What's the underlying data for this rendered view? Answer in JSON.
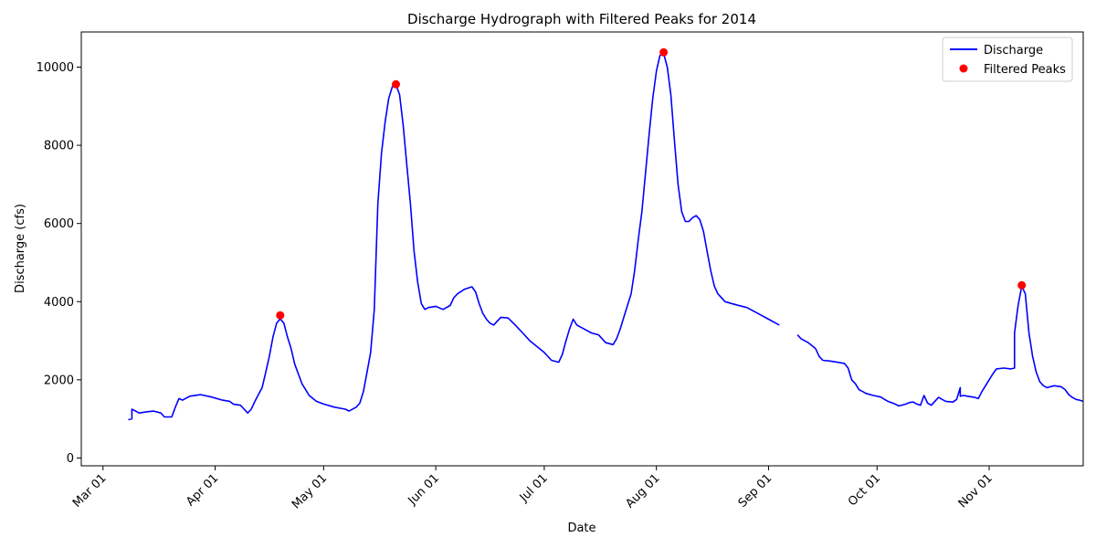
{
  "chart_data": {
    "type": "line",
    "title": "Discharge Hydrograph with Filtered Peaks for 2014",
    "xlabel": "Date",
    "ylabel": "Discharge (cfs)",
    "xlim": [
      "2014-02-23",
      "2014-11-27"
    ],
    "ylim": [
      -200,
      10900
    ],
    "x_ticks": [
      {
        "date": "2014-03-01",
        "label": "Mar 01"
      },
      {
        "date": "2014-04-01",
        "label": "Apr 01"
      },
      {
        "date": "2014-05-01",
        "label": "May 01"
      },
      {
        "date": "2014-06-01",
        "label": "Jun 01"
      },
      {
        "date": "2014-07-01",
        "label": "Jul 01"
      },
      {
        "date": "2014-08-01",
        "label": "Aug 01"
      },
      {
        "date": "2014-09-01",
        "label": "Sep 01"
      },
      {
        "date": "2014-10-01",
        "label": "Oct 01"
      },
      {
        "date": "2014-11-01",
        "label": "Nov 01"
      }
    ],
    "y_ticks": [
      0,
      2000,
      4000,
      6000,
      8000,
      10000
    ],
    "grid": false,
    "legend": {
      "position": "top-right",
      "entries": [
        "Discharge",
        "Filtered Peaks"
      ]
    },
    "series": [
      {
        "name": "Discharge",
        "kind": "line",
        "color": "#0000ff",
        "segments": [
          [
            [
              "2014-03-08",
              980
            ],
            [
              "2014-03-09",
              1000
            ],
            [
              "2014-03-09",
              1250
            ],
            [
              "2014-03-10",
              1200
            ],
            [
              "2014-03-11",
              1150
            ],
            [
              "2014-03-13",
              1180
            ],
            [
              "2014-03-15",
              1200
            ],
            [
              "2014-03-17",
              1150
            ],
            [
              "2014-03-18",
              1050
            ],
            [
              "2014-03-20",
              1050
            ],
            [
              "2014-03-21",
              1300
            ],
            [
              "2014-03-22",
              1520
            ],
            [
              "2014-03-23",
              1480
            ],
            [
              "2014-03-25",
              1580
            ],
            [
              "2014-03-28",
              1620
            ],
            [
              "2014-03-31",
              1560
            ],
            [
              "2014-04-03",
              1480
            ],
            [
              "2014-04-05",
              1450
            ],
            [
              "2014-04-06",
              1380
            ],
            [
              "2014-04-08",
              1350
            ],
            [
              "2014-04-10",
              1150
            ],
            [
              "2014-04-11",
              1250
            ],
            [
              "2014-04-12",
              1450
            ],
            [
              "2014-04-14",
              1800
            ],
            [
              "2014-04-15",
              2200
            ],
            [
              "2014-04-16",
              2600
            ],
            [
              "2014-04-17",
              3100
            ],
            [
              "2014-04-18",
              3450
            ],
            [
              "2014-04-19",
              3560
            ],
            [
              "2014-04-20",
              3450
            ],
            [
              "2014-04-21",
              3100
            ],
            [
              "2014-04-22",
              2800
            ],
            [
              "2014-04-23",
              2400
            ],
            [
              "2014-04-25",
              1900
            ],
            [
              "2014-04-27",
              1600
            ],
            [
              "2014-04-29",
              1450
            ],
            [
              "2014-05-01",
              1380
            ],
            [
              "2014-05-04",
              1300
            ],
            [
              "2014-05-07",
              1250
            ],
            [
              "2014-05-08",
              1200
            ],
            [
              "2014-05-10",
              1300
            ],
            [
              "2014-05-11",
              1400
            ],
            [
              "2014-05-12",
              1700
            ],
            [
              "2014-05-13",
              2200
            ],
            [
              "2014-05-14",
              2700
            ],
            [
              "2014-05-15",
              3800
            ],
            [
              "2014-05-16",
              6500
            ],
            [
              "2014-05-17",
              7800
            ],
            [
              "2014-05-18",
              8600
            ],
            [
              "2014-05-19",
              9200
            ],
            [
              "2014-05-20",
              9500
            ],
            [
              "2014-05-21",
              9550
            ],
            [
              "2014-05-22",
              9300
            ],
            [
              "2014-05-23",
              8500
            ],
            [
              "2014-05-24",
              7500
            ],
            [
              "2014-05-25",
              6500
            ],
            [
              "2014-05-26",
              5300
            ],
            [
              "2014-05-27",
              4500
            ],
            [
              "2014-05-28",
              3950
            ],
            [
              "2014-05-29",
              3800
            ],
            [
              "2014-05-30",
              3850
            ],
            [
              "2014-06-01",
              3880
            ],
            [
              "2014-06-03",
              3800
            ],
            [
              "2014-06-05",
              3900
            ],
            [
              "2014-06-06",
              4100
            ],
            [
              "2014-06-07",
              4200
            ],
            [
              "2014-06-09",
              4320
            ],
            [
              "2014-06-11",
              4380
            ],
            [
              "2014-06-12",
              4250
            ],
            [
              "2014-06-13",
              3950
            ],
            [
              "2014-06-14",
              3700
            ],
            [
              "2014-06-15",
              3550
            ],
            [
              "2014-06-16",
              3450
            ],
            [
              "2014-06-17",
              3400
            ],
            [
              "2014-06-18",
              3500
            ],
            [
              "2014-06-19",
              3600
            ],
            [
              "2014-06-21",
              3580
            ],
            [
              "2014-06-23",
              3400
            ],
            [
              "2014-06-25",
              3200
            ],
            [
              "2014-06-27",
              3000
            ],
            [
              "2014-06-29",
              2850
            ],
            [
              "2014-07-01",
              2700
            ],
            [
              "2014-07-03",
              2500
            ],
            [
              "2014-07-05",
              2450
            ],
            [
              "2014-07-06",
              2650
            ],
            [
              "2014-07-07",
              3000
            ],
            [
              "2014-07-08",
              3300
            ],
            [
              "2014-07-09",
              3550
            ],
            [
              "2014-07-10",
              3400
            ],
            [
              "2014-07-12",
              3300
            ],
            [
              "2014-07-14",
              3200
            ],
            [
              "2014-07-16",
              3150
            ],
            [
              "2014-07-17",
              3050
            ],
            [
              "2014-07-18",
              2950
            ],
            [
              "2014-07-20",
              2900
            ],
            [
              "2014-07-21",
              3050
            ],
            [
              "2014-07-22",
              3300
            ],
            [
              "2014-07-23",
              3600
            ],
            [
              "2014-07-24",
              3900
            ],
            [
              "2014-07-25",
              4200
            ],
            [
              "2014-07-26",
              4800
            ],
            [
              "2014-07-27",
              5600
            ],
            [
              "2014-07-28",
              6300
            ],
            [
              "2014-07-29",
              7300
            ],
            [
              "2014-07-30",
              8300
            ],
            [
              "2014-07-31",
              9200
            ],
            [
              "2014-08-01",
              9900
            ],
            [
              "2014-08-02",
              10300
            ],
            [
              "2014-08-03",
              10350
            ],
            [
              "2014-08-04",
              10000
            ],
            [
              "2014-08-05",
              9300
            ],
            [
              "2014-08-06",
              8100
            ],
            [
              "2014-08-07",
              7000
            ],
            [
              "2014-08-08",
              6300
            ],
            [
              "2014-08-09",
              6050
            ],
            [
              "2014-08-10",
              6050
            ],
            [
              "2014-08-11",
              6150
            ],
            [
              "2014-08-12",
              6200
            ],
            [
              "2014-08-13",
              6100
            ],
            [
              "2014-08-14",
              5800
            ],
            [
              "2014-08-15",
              5300
            ],
            [
              "2014-08-16",
              4800
            ],
            [
              "2014-08-17",
              4400
            ],
            [
              "2014-08-18",
              4200
            ],
            [
              "2014-08-20",
              4000
            ],
            [
              "2014-08-23",
              3920
            ],
            [
              "2014-08-26",
              3850
            ],
            [
              "2014-08-29",
              3700
            ],
            [
              "2014-09-01",
              3550
            ],
            [
              "2014-09-03",
              3450
            ],
            [
              "2014-09-04",
              3400
            ]
          ],
          [
            [
              "2014-09-09",
              3150
            ],
            [
              "2014-09-10",
              3050
            ],
            [
              "2014-09-12",
              2950
            ],
            [
              "2014-09-14",
              2800
            ],
            [
              "2014-09-15",
              2600
            ],
            [
              "2014-09-16",
              2500
            ],
            [
              "2014-09-18",
              2480
            ],
            [
              "2014-09-20",
              2450
            ],
            [
              "2014-09-22",
              2420
            ],
            [
              "2014-09-23",
              2300
            ],
            [
              "2014-09-24",
              2000
            ],
            [
              "2014-09-25",
              1900
            ],
            [
              "2014-09-26",
              1750
            ],
            [
              "2014-09-28",
              1650
            ],
            [
              "2014-09-30",
              1600
            ],
            [
              "2014-10-02",
              1560
            ],
            [
              "2014-10-04",
              1450
            ],
            [
              "2014-10-06",
              1380
            ],
            [
              "2014-10-07",
              1330
            ],
            [
              "2014-10-09",
              1380
            ],
            [
              "2014-10-10",
              1420
            ],
            [
              "2014-10-11",
              1430
            ],
            [
              "2014-10-12",
              1380
            ],
            [
              "2014-10-13",
              1350
            ],
            [
              "2014-10-14",
              1600
            ],
            [
              "2014-10-15",
              1400
            ],
            [
              "2014-10-16",
              1350
            ],
            [
              "2014-10-18",
              1550
            ],
            [
              "2014-10-19",
              1500
            ],
            [
              "2014-10-20",
              1450
            ],
            [
              "2014-10-22",
              1430
            ],
            [
              "2014-10-23",
              1500
            ],
            [
              "2014-10-24",
              1800
            ],
            [
              "2014-10-24",
              1580
            ],
            [
              "2014-10-25",
              1600
            ],
            [
              "2014-10-26",
              1580
            ],
            [
              "2014-10-28",
              1550
            ],
            [
              "2014-10-29",
              1520
            ],
            [
              "2014-10-30",
              1700
            ],
            [
              "2014-11-01",
              2000
            ],
            [
              "2014-11-02",
              2150
            ],
            [
              "2014-11-03",
              2280
            ],
            [
              "2014-11-05",
              2300
            ],
            [
              "2014-11-07",
              2280
            ],
            [
              "2014-11-08",
              2300
            ],
            [
              "2014-11-08",
              3200
            ],
            [
              "2014-11-09",
              3900
            ],
            [
              "2014-11-10",
              4400
            ],
            [
              "2014-11-11",
              4200
            ],
            [
              "2014-11-12",
              3200
            ],
            [
              "2014-11-13",
              2600
            ],
            [
              "2014-11-14",
              2200
            ],
            [
              "2014-11-15",
              1950
            ],
            [
              "2014-11-16",
              1850
            ],
            [
              "2014-11-17",
              1800
            ],
            [
              "2014-11-19",
              1850
            ],
            [
              "2014-11-21",
              1820
            ],
            [
              "2014-11-22",
              1750
            ],
            [
              "2014-11-23",
              1620
            ],
            [
              "2014-11-24",
              1550
            ],
            [
              "2014-11-25",
              1500
            ],
            [
              "2014-11-26",
              1480
            ],
            [
              "2014-11-27",
              1450
            ]
          ]
        ]
      },
      {
        "name": "Filtered Peaks",
        "kind": "scatter",
        "color": "#ff0000",
        "points": [
          [
            "2014-04-19",
            3650
          ],
          [
            "2014-05-21",
            9560
          ],
          [
            "2014-08-03",
            10380
          ],
          [
            "2014-11-10",
            4420
          ]
        ]
      }
    ]
  }
}
